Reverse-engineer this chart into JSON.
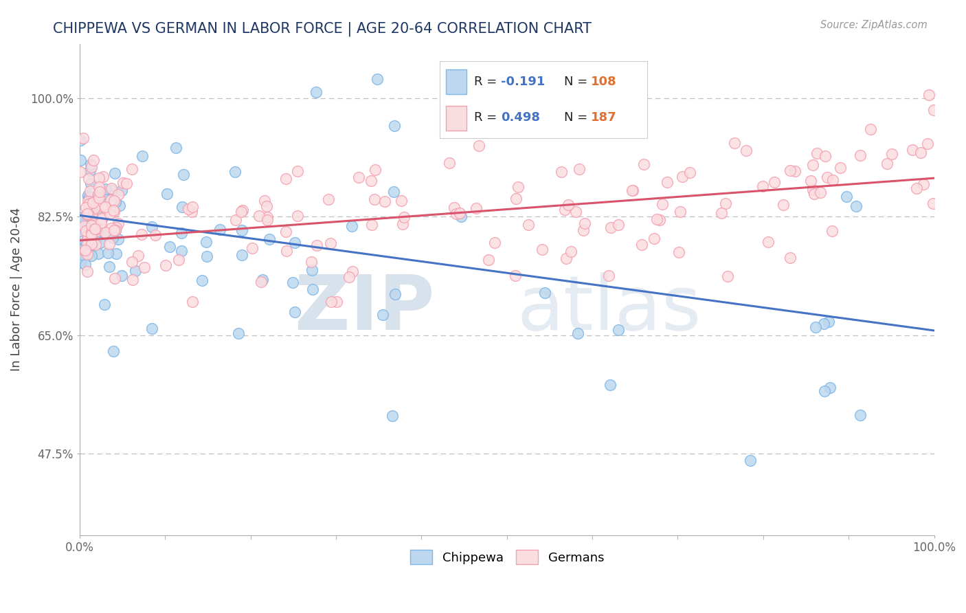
{
  "title": "CHIPPEWA VS GERMAN IN LABOR FORCE | AGE 20-64 CORRELATION CHART",
  "source_text": "Source: ZipAtlas.com",
  "ylabel": "In Labor Force | Age 20-64",
  "watermark_zip": "ZIP",
  "watermark_atlas": "atlas",
  "xlim": [
    0.0,
    1.0
  ],
  "ylim": [
    0.355,
    1.08
  ],
  "yticks": [
    0.475,
    0.65,
    0.825,
    1.0
  ],
  "yticklabels": [
    "47.5%",
    "65.0%",
    "82.5%",
    "100.0%"
  ],
  "chippewa_R": -0.191,
  "chippewa_N": 108,
  "german_R": 0.498,
  "german_N": 187,
  "chippewa_dot_face": "#BDD7EE",
  "chippewa_dot_edge": "#7EB6E8",
  "german_dot_face": "#FADDE1",
  "german_dot_edge": "#F4A0B0",
  "chippewa_line_color": "#4472C4",
  "german_line_color": "#D9536A",
  "chippewa_label": "Chippewa",
  "german_label": "Germans",
  "background_color": "#FFFFFF",
  "grid_color": "#C0C0C0",
  "title_color": "#1F3864",
  "legend_R_color": "#4472C4",
  "legend_N_color": "#E07030",
  "chippewa_seed": 7,
  "german_seed": 13,
  "chip_line_x0": 0.0,
  "chip_line_y0": 0.827,
  "chip_line_x1": 1.0,
  "chip_line_y1": 0.657,
  "ger_line_x0": 0.0,
  "ger_line_y0": 0.79,
  "ger_line_x1": 1.0,
  "ger_line_y1": 0.882
}
